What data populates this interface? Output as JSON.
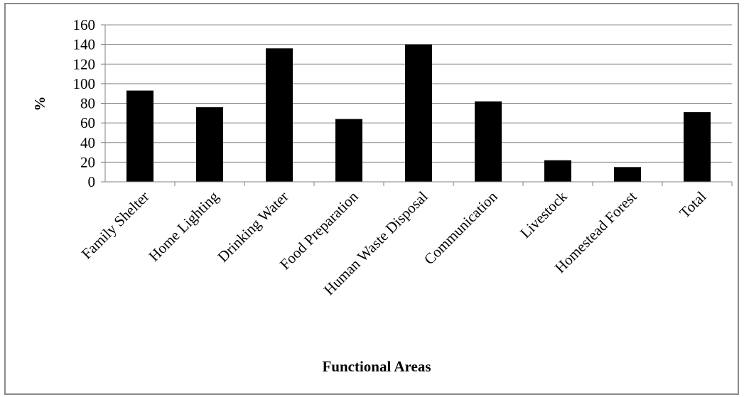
{
  "chart_data": {
    "type": "bar",
    "title": "",
    "xlabel": "Functional Areas",
    "ylabel": "%",
    "categories": [
      "Family Shelter",
      "Home Lighting",
      "Drinking Water",
      "Food Preparation",
      "Human Waste Disposal",
      "Communication",
      "Livestock",
      "Homestead Forest",
      "Total"
    ],
    "values": [
      93,
      76,
      136,
      64,
      140,
      82,
      22,
      15,
      71
    ],
    "ylim": [
      0,
      160
    ],
    "yticks": [
      0,
      20,
      40,
      60,
      80,
      100,
      120,
      140,
      160
    ],
    "grid": true,
    "legend": "none",
    "colors": {
      "bar": "#000000",
      "grid": "#8c8c8c",
      "axis": "#808080"
    }
  }
}
